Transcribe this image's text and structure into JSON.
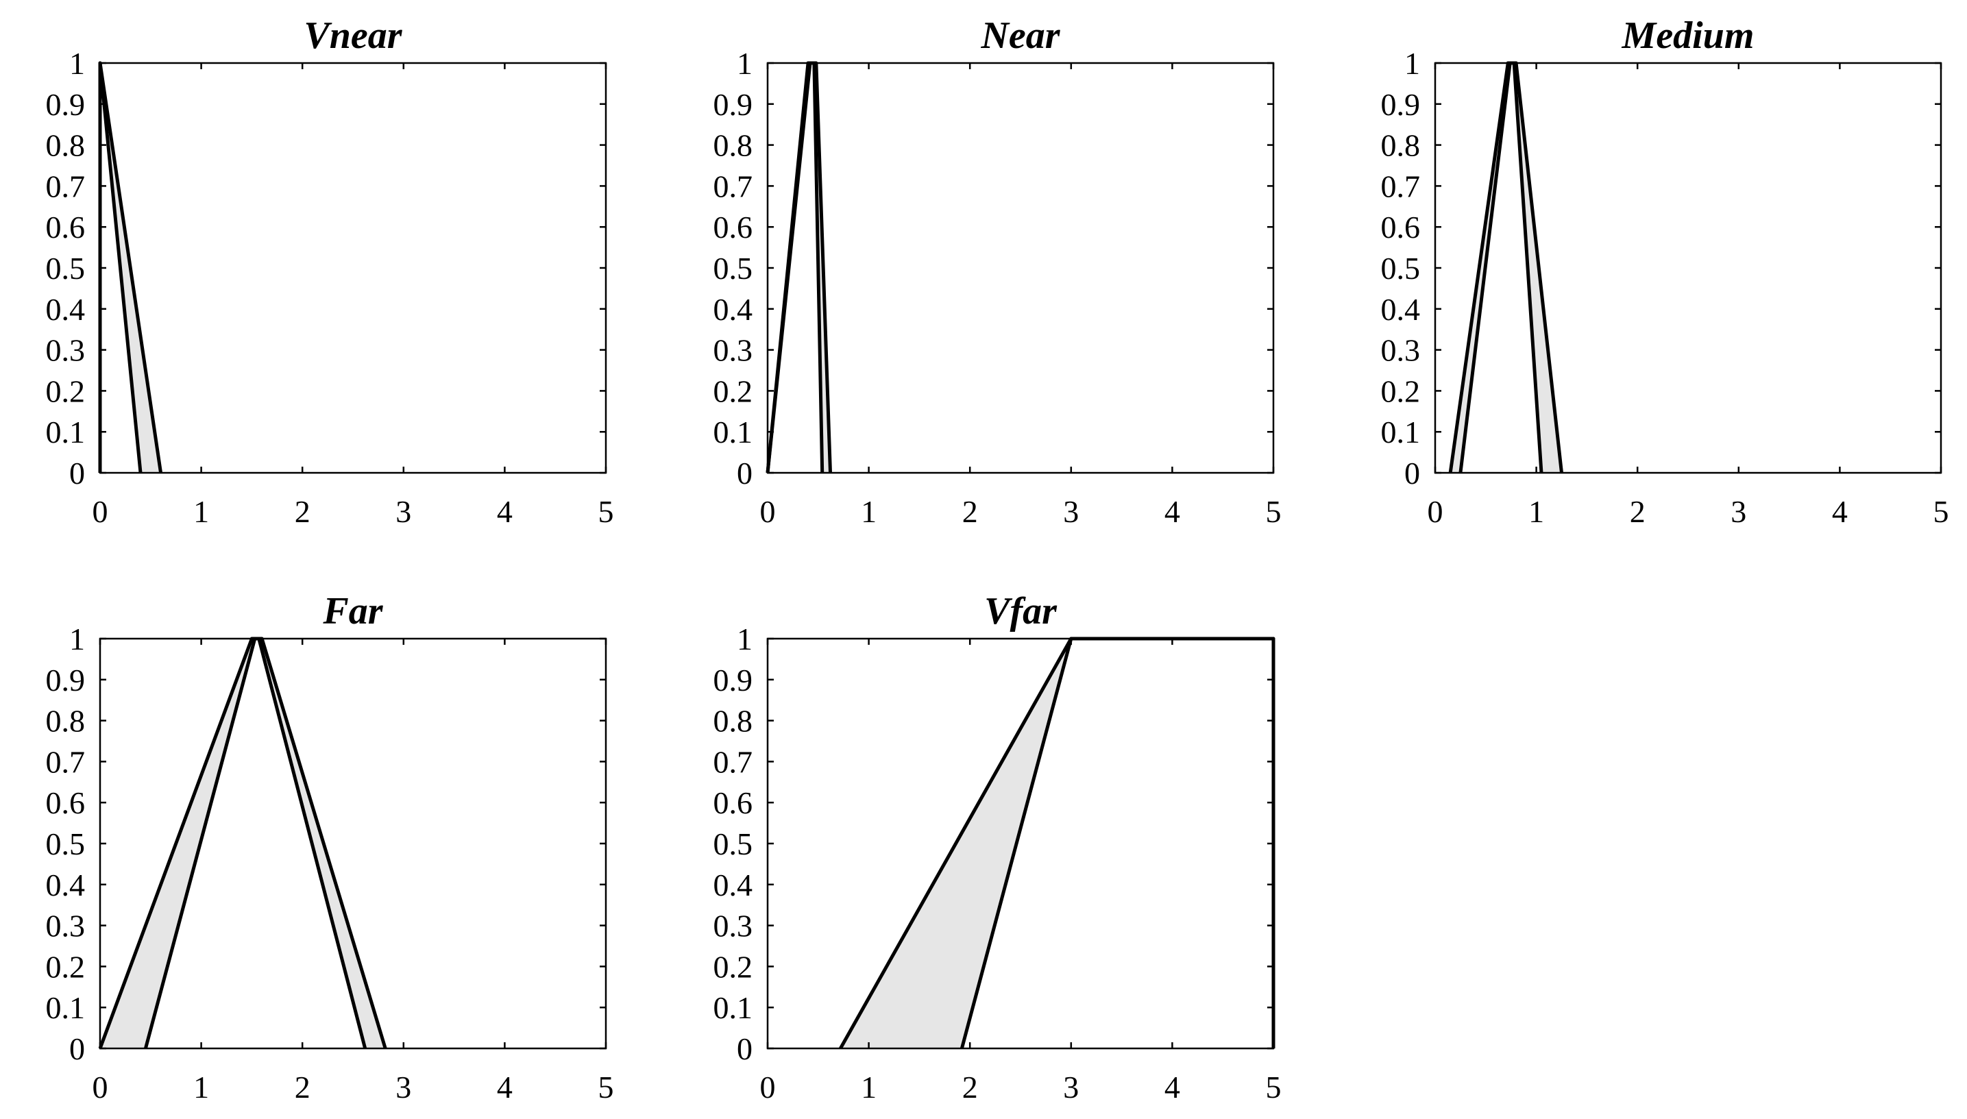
{
  "chart_data": [
    {
      "type": "area",
      "title": "Vnear",
      "xlabel": "",
      "ylabel": "",
      "xlim": [
        0,
        5
      ],
      "ylim": [
        0,
        1
      ],
      "xticks": [
        "0",
        "1",
        "2",
        "3",
        "4",
        "5"
      ],
      "yticks": [
        "0",
        "0.1",
        "0.2",
        "0.3",
        "0.4",
        "0.5",
        "0.6",
        "0.7",
        "0.8",
        "0.9",
        "1"
      ],
      "grid": false,
      "upper_membership": {
        "x": [
          0,
          0,
          0.6
        ],
        "y": [
          0,
          1,
          0
        ]
      },
      "lower_membership": {
        "x": [
          0,
          0,
          0.4
        ],
        "y": [
          0,
          1,
          0
        ]
      }
    },
    {
      "type": "area",
      "title": "Near",
      "xlabel": "",
      "ylabel": "",
      "xlim": [
        0,
        5
      ],
      "ylim": [
        0,
        1
      ],
      "xticks": [
        "0",
        "1",
        "2",
        "3",
        "4",
        "5"
      ],
      "yticks": [
        "0",
        "0.1",
        "0.2",
        "0.3",
        "0.4",
        "0.5",
        "0.6",
        "0.7",
        "0.8",
        "0.9",
        "1"
      ],
      "grid": false,
      "upper_membership": {
        "x": [
          0,
          0.4,
          0.48,
          0.62
        ],
        "y": [
          0,
          1,
          1,
          0
        ]
      },
      "lower_membership": {
        "x": [
          0,
          0.42,
          0.46,
          0.54
        ],
        "y": [
          0,
          1,
          1,
          0
        ]
      }
    },
    {
      "type": "area",
      "title": "Medium",
      "xlabel": "",
      "ylabel": "",
      "xlim": [
        0,
        5
      ],
      "ylim": [
        0,
        1
      ],
      "xticks": [
        "0",
        "1",
        "2",
        "3",
        "4",
        "5"
      ],
      "yticks": [
        "0",
        "0.1",
        "0.2",
        "0.3",
        "0.4",
        "0.5",
        "0.6",
        "0.7",
        "0.8",
        "0.9",
        "1"
      ],
      "grid": false,
      "upper_membership": {
        "x": [
          0.15,
          0.72,
          0.8,
          1.25
        ],
        "y": [
          0,
          1,
          1,
          0
        ]
      },
      "lower_membership": {
        "x": [
          0.25,
          0.74,
          0.78,
          1.05
        ],
        "y": [
          0,
          1,
          1,
          0
        ]
      }
    },
    {
      "type": "area",
      "title": "Far",
      "xlabel": "",
      "ylabel": "",
      "xlim": [
        0,
        5
      ],
      "ylim": [
        0,
        1
      ],
      "xticks": [
        "0",
        "1",
        "2",
        "3",
        "4",
        "5"
      ],
      "yticks": [
        "0",
        "0.1",
        "0.2",
        "0.3",
        "0.4",
        "0.5",
        "0.6",
        "0.7",
        "0.8",
        "0.9",
        "1"
      ],
      "grid": false,
      "upper_membership": {
        "x": [
          0,
          1.5,
          1.6,
          2.82
        ],
        "y": [
          0,
          1,
          1,
          0
        ]
      },
      "lower_membership": {
        "x": [
          0.45,
          1.53,
          1.57,
          2.62
        ],
        "y": [
          0,
          1,
          1,
          0
        ]
      }
    },
    {
      "type": "area",
      "title": "Vfar",
      "xlabel": "",
      "ylabel": "",
      "xlim": [
        0,
        5
      ],
      "ylim": [
        0,
        1
      ],
      "xticks": [
        "0",
        "1",
        "2",
        "3",
        "4",
        "5"
      ],
      "yticks": [
        "0",
        "0.1",
        "0.2",
        "0.3",
        "0.4",
        "0.5",
        "0.6",
        "0.7",
        "0.8",
        "0.9",
        "1"
      ],
      "grid": false,
      "upper_membership": {
        "x": [
          0.72,
          3,
          5,
          5
        ],
        "y": [
          0,
          1,
          1,
          0
        ]
      },
      "lower_membership": {
        "x": [
          1.92,
          3,
          5,
          5
        ],
        "y": [
          0,
          1,
          1,
          0
        ]
      }
    }
  ],
  "style": {
    "fill_color": "#e6e6e6",
    "line_color": "#000000",
    "axes_color": "#000000",
    "background": "#ffffff"
  }
}
